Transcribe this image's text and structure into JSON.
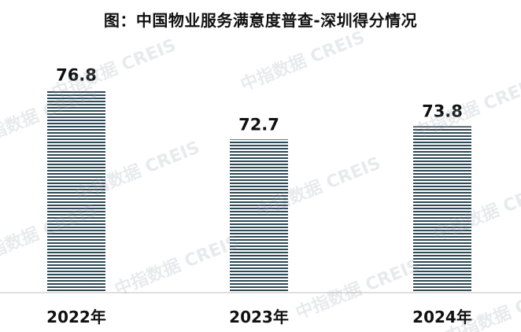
{
  "chart_data": {
    "type": "bar",
    "title": "图：中国物业服务满意度普查-深圳得分情况",
    "categories": [
      "2022年",
      "2023年",
      "2024年"
    ],
    "values": [
      76.8,
      72.7,
      73.8
    ],
    "ylim": [
      60,
      78
    ],
    "grid": false,
    "bar_style": "horizontal-stripes",
    "bar_color": "#2e4a56",
    "watermark_text": "中指数据 CREIS"
  }
}
